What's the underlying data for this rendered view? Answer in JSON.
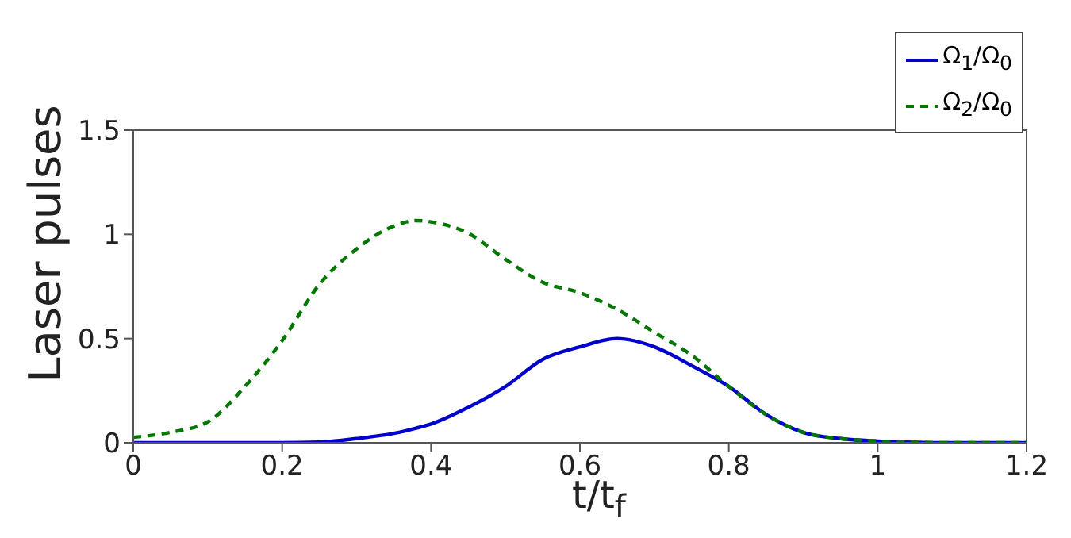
{
  "chart_data": {
    "type": "line",
    "xlabel": "t/t$_{f}$",
    "ylabel": "Laser pulses",
    "x": [
      0,
      0.05,
      0.1,
      0.15,
      0.2,
      0.25,
      0.3,
      0.35,
      0.38,
      0.4,
      0.45,
      0.5,
      0.55,
      0.6,
      0.65,
      0.7,
      0.75,
      0.8,
      0.85,
      0.9,
      0.95,
      1,
      1.05,
      1.1,
      1.15,
      1.2
    ],
    "series": [
      {
        "name": "Ω$_{1}$/Ω$_{0}$",
        "color": "#0000cc",
        "line_style": "solid",
        "values": [
          0,
          0,
          0,
          0,
          0,
          0.003,
          0.02,
          0.045,
          0.07,
          0.09,
          0.17,
          0.27,
          0.4,
          0.46,
          0.5,
          0.46,
          0.37,
          0.27,
          0.136,
          0.05,
          0.02,
          0.008,
          0.002,
          0,
          0,
          0
        ]
      },
      {
        "name": "Ω$_{2}$/Ω$_{0}$",
        "color": "#007700",
        "line_style": "dashed",
        "values": [
          0.026,
          0.05,
          0.1,
          0.27,
          0.49,
          0.76,
          0.93,
          1.04,
          1.066,
          1.06,
          1.005,
          0.88,
          0.77,
          0.72,
          0.64,
          0.53,
          0.42,
          0.27,
          0.136,
          0.05,
          0.02,
          0.008,
          0.002,
          0,
          0,
          0
        ]
      }
    ],
    "xlim": [
      0,
      1.2
    ],
    "xticks": [
      0,
      0.2,
      0.4,
      0.6,
      0.8,
      1,
      1.2
    ],
    "ylim": [
      0,
      1.5
    ],
    "yticks": [
      0,
      0.5,
      1,
      1.5
    ],
    "legend": "top right",
    "marker": "none",
    "grid": false
  }
}
